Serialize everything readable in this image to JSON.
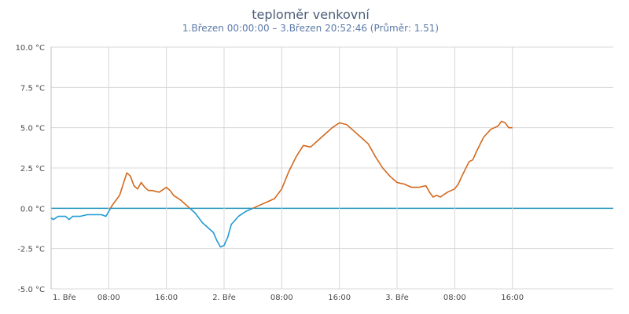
{
  "colors": {
    "positive": "#d2691e",
    "negative": "#1f9ad6",
    "zero_line": "#2596be",
    "grid": "#d8d8d8"
  },
  "chart_data": {
    "type": "line",
    "title": "teploměr venkovní",
    "subtitle": "1.Březen 00:00:00 – 3.Březen 20:52:46 (Průměr: 1.51)",
    "xlabel": "",
    "ylabel": "",
    "ylim": [
      -5,
      10
    ],
    "y_ticks": [
      {
        "value": 10,
        "label": "10.0 °C"
      },
      {
        "value": 7.5,
        "label": "7.5 °C"
      },
      {
        "value": 5,
        "label": "5.0 °C"
      },
      {
        "value": 2.5,
        "label": "2.5 °C"
      },
      {
        "value": 0,
        "label": "0.0 °C"
      },
      {
        "value": -2.5,
        "label": "-2.5 °C"
      },
      {
        "value": -5,
        "label": "-5.0 °C"
      }
    ],
    "xlim_hours": [
      0,
      78
    ],
    "x_ticks": [
      {
        "value": 0,
        "label": "1. Bře"
      },
      {
        "value": 8,
        "label": "08:00"
      },
      {
        "value": 16,
        "label": "16:00"
      },
      {
        "value": 24,
        "label": "2. Bře"
      },
      {
        "value": 32,
        "label": "08:00"
      },
      {
        "value": 40,
        "label": "16:00"
      },
      {
        "value": 48,
        "label": "3. Bře"
      },
      {
        "value": 56,
        "label": "08:00"
      },
      {
        "value": 64,
        "label": "16:00"
      }
    ],
    "grid": true,
    "series": [
      {
        "name": "",
        "x": [
          0,
          0.3,
          1,
          2,
          2.5,
          3,
          4,
          5,
          6,
          7,
          7.6,
          8,
          8.5,
          9,
          9.5,
          10,
          10.5,
          11,
          11.5,
          12,
          12.5,
          13,
          13.5,
          14,
          15,
          16,
          16.5,
          17,
          18,
          19,
          20,
          21,
          22,
          22.5,
          23,
          23.5,
          24,
          24.5,
          25,
          26,
          27,
          28,
          29,
          30,
          31,
          32,
          33,
          34,
          35,
          36,
          37,
          38,
          39,
          40,
          41,
          42,
          43,
          44,
          45,
          46,
          47,
          48,
          49,
          50,
          51,
          52,
          52.5,
          53,
          53.5,
          54,
          55,
          56,
          56.5,
          57,
          58,
          58.5,
          59,
          60,
          61,
          61.5,
          62,
          62.5,
          63,
          63.5,
          64
        ],
        "y": [
          -0.6,
          -0.7,
          -0.5,
          -0.5,
          -0.7,
          -0.5,
          -0.5,
          -0.4,
          -0.4,
          -0.4,
          -0.5,
          -0.2,
          0.2,
          0.5,
          0.8,
          1.5,
          2.2,
          2.0,
          1.4,
          1.2,
          1.6,
          1.3,
          1.1,
          1.1,
          1.0,
          1.3,
          1.1,
          0.8,
          0.5,
          0.1,
          -0.3,
          -0.9,
          -1.3,
          -1.5,
          -2.0,
          -2.4,
          -2.3,
          -1.8,
          -1.0,
          -0.5,
          -0.2,
          0.0,
          0.2,
          0.4,
          0.6,
          1.2,
          2.3,
          3.2,
          3.9,
          3.8,
          4.2,
          4.6,
          5.0,
          5.3,
          5.2,
          4.8,
          4.4,
          4.0,
          3.2,
          2.5,
          2.0,
          1.6,
          1.5,
          1.3,
          1.3,
          1.4,
          1.0,
          0.7,
          0.8,
          0.7,
          1.0,
          1.2,
          1.5,
          2.0,
          2.9,
          3.0,
          3.5,
          4.4,
          4.9,
          5.0,
          5.1,
          5.4,
          5.3,
          5.0,
          5.0
        ]
      }
    ]
  }
}
